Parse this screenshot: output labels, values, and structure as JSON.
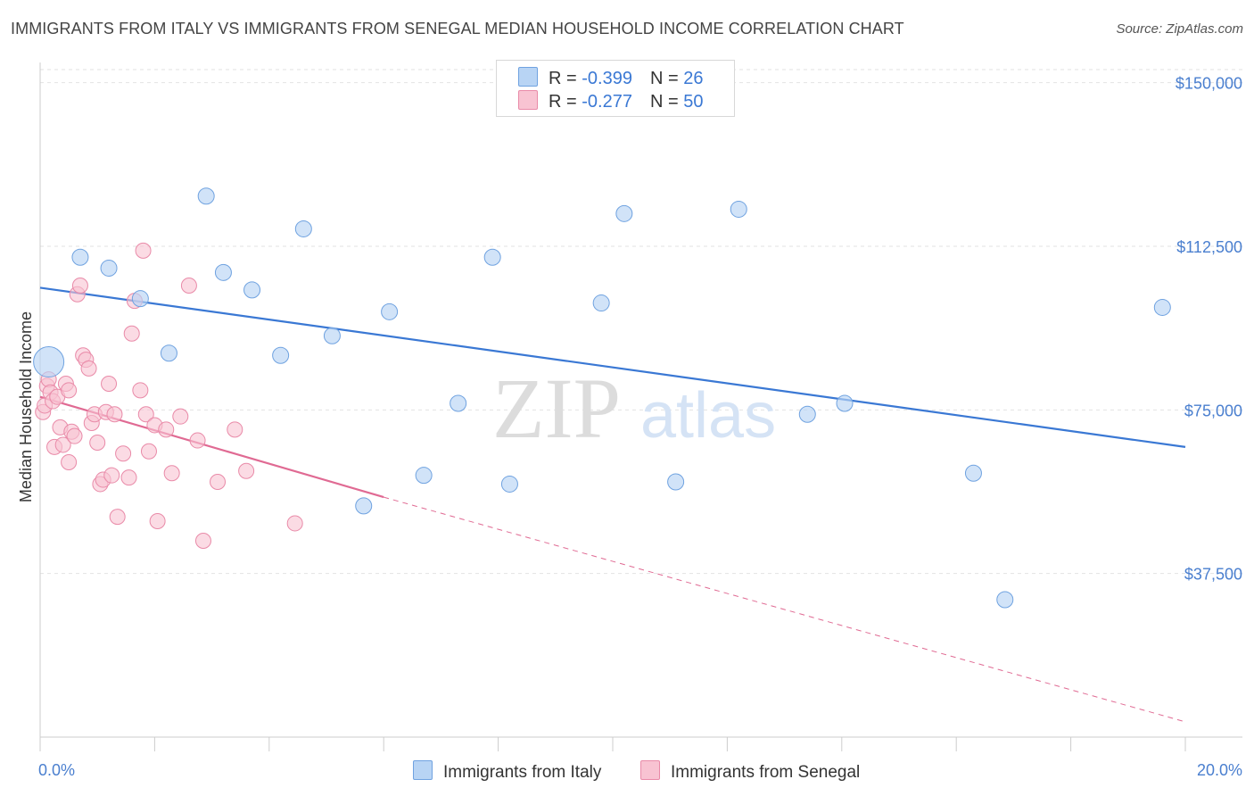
{
  "title": "IMMIGRANTS FROM ITALY VS IMMIGRANTS FROM SENEGAL MEDIAN HOUSEHOLD INCOME CORRELATION CHART",
  "source": "Source: ZipAtlas.com",
  "watermark": {
    "zip": "ZIP",
    "atlas": "atlas"
  },
  "colors": {
    "italy_fill": "#b8d4f4",
    "italy_stroke": "#6fa2e0",
    "italy_line": "#3a78d4",
    "senegal_fill": "#f8c3d2",
    "senegal_stroke": "#e98aa8",
    "senegal_line": "#e06a93",
    "tick_label": "#4a7fcf",
    "grid": "#e2e2e2"
  },
  "legend_top": [
    {
      "r_label": "R = ",
      "r_value": "-0.399",
      "n_label": "N = ",
      "n_value": "26"
    },
    {
      "r_label": "R = ",
      "r_value": "-0.277",
      "n_label": "N = ",
      "n_value": "50"
    }
  ],
  "legend_bottom": [
    "Immigrants from Italy",
    "Immigrants from Senegal"
  ],
  "chart_data": {
    "type": "scatter",
    "title": "IMMIGRANTS FROM ITALY VS IMMIGRANTS FROM SENEGAL MEDIAN HOUSEHOLD INCOME CORRELATION CHART",
    "xlabel": "",
    "ylabel": "Median Household Income",
    "xlim": [
      0,
      20
    ],
    "ylim": [
      0,
      153000
    ],
    "x_tick_labels": [
      "0.0%",
      "20.0%"
    ],
    "y_ticks": [
      37500,
      75000,
      112500,
      150000
    ],
    "y_tick_labels": [
      "$37,500",
      "$75,000",
      "$112,500",
      "$150,000"
    ],
    "grid": "horizontal dashed",
    "legend_position": "top-center",
    "series": [
      {
        "name": "Immigrants from Italy",
        "r": -0.399,
        "n": 26,
        "trend": {
          "x": [
            0,
            20
          ],
          "y": [
            103000,
            66500
          ]
        },
        "points": [
          {
            "x": 0.15,
            "y": 86000,
            "big": true
          },
          {
            "x": 0.7,
            "y": 110000
          },
          {
            "x": 1.2,
            "y": 107500
          },
          {
            "x": 1.75,
            "y": 100500
          },
          {
            "x": 2.25,
            "y": 88000
          },
          {
            "x": 2.9,
            "y": 124000
          },
          {
            "x": 3.2,
            "y": 106500
          },
          {
            "x": 3.7,
            "y": 102500
          },
          {
            "x": 4.2,
            "y": 87500
          },
          {
            "x": 4.6,
            "y": 116500
          },
          {
            "x": 5.1,
            "y": 92000
          },
          {
            "x": 5.65,
            "y": 53000
          },
          {
            "x": 6.1,
            "y": 97500
          },
          {
            "x": 6.7,
            "y": 60000
          },
          {
            "x": 7.3,
            "y": 76500
          },
          {
            "x": 7.9,
            "y": 110000
          },
          {
            "x": 8.2,
            "y": 58000
          },
          {
            "x": 9.8,
            "y": 99500
          },
          {
            "x": 10.2,
            "y": 120000
          },
          {
            "x": 11.1,
            "y": 58500
          },
          {
            "x": 12.2,
            "y": 121000
          },
          {
            "x": 13.4,
            "y": 74000
          },
          {
            "x": 14.05,
            "y": 76500
          },
          {
            "x": 16.3,
            "y": 60500
          },
          {
            "x": 16.85,
            "y": 31500
          },
          {
            "x": 19.6,
            "y": 98500
          }
        ]
      },
      {
        "name": "Immigrants from Senegal",
        "r": -0.277,
        "n": 50,
        "trend": {
          "x": [
            0,
            6
          ],
          "y": [
            78000,
            55000
          ]
        },
        "trend_extension": {
          "x": [
            6,
            20
          ],
          "y": [
            55000,
            3500
          ]
        },
        "points": [
          {
            "x": 0.05,
            "y": 74500
          },
          {
            "x": 0.08,
            "y": 76000
          },
          {
            "x": 0.12,
            "y": 80500
          },
          {
            "x": 0.15,
            "y": 82000
          },
          {
            "x": 0.18,
            "y": 79000
          },
          {
            "x": 0.22,
            "y": 77000
          },
          {
            "x": 0.25,
            "y": 66500
          },
          {
            "x": 0.3,
            "y": 78000
          },
          {
            "x": 0.35,
            "y": 71000
          },
          {
            "x": 0.4,
            "y": 67000
          },
          {
            "x": 0.45,
            "y": 81000
          },
          {
            "x": 0.5,
            "y": 79500
          },
          {
            "x": 0.5,
            "y": 63000
          },
          {
            "x": 0.55,
            "y": 70000
          },
          {
            "x": 0.6,
            "y": 69000
          },
          {
            "x": 0.65,
            "y": 101500
          },
          {
            "x": 0.7,
            "y": 103500
          },
          {
            "x": 0.75,
            "y": 87500
          },
          {
            "x": 0.8,
            "y": 86500
          },
          {
            "x": 0.85,
            "y": 84500
          },
          {
            "x": 0.9,
            "y": 72000
          },
          {
            "x": 0.95,
            "y": 74000
          },
          {
            "x": 1.0,
            "y": 67500
          },
          {
            "x": 1.05,
            "y": 58000
          },
          {
            "x": 1.1,
            "y": 59000
          },
          {
            "x": 1.15,
            "y": 74500
          },
          {
            "x": 1.2,
            "y": 81000
          },
          {
            "x": 1.25,
            "y": 60000
          },
          {
            "x": 1.3,
            "y": 74000
          },
          {
            "x": 1.35,
            "y": 50500
          },
          {
            "x": 1.45,
            "y": 65000
          },
          {
            "x": 1.55,
            "y": 59500
          },
          {
            "x": 1.6,
            "y": 92500
          },
          {
            "x": 1.65,
            "y": 100000
          },
          {
            "x": 1.75,
            "y": 79500
          },
          {
            "x": 1.8,
            "y": 111500
          },
          {
            "x": 1.85,
            "y": 74000
          },
          {
            "x": 1.9,
            "y": 65500
          },
          {
            "x": 2.0,
            "y": 71500
          },
          {
            "x": 2.05,
            "y": 49500
          },
          {
            "x": 2.2,
            "y": 70500
          },
          {
            "x": 2.3,
            "y": 60500
          },
          {
            "x": 2.45,
            "y": 73500
          },
          {
            "x": 2.6,
            "y": 103500
          },
          {
            "x": 2.75,
            "y": 68000
          },
          {
            "x": 2.85,
            "y": 45000
          },
          {
            "x": 3.1,
            "y": 58500
          },
          {
            "x": 3.4,
            "y": 70500
          },
          {
            "x": 3.6,
            "y": 61000
          },
          {
            "x": 4.45,
            "y": 49000
          }
        ]
      }
    ]
  }
}
